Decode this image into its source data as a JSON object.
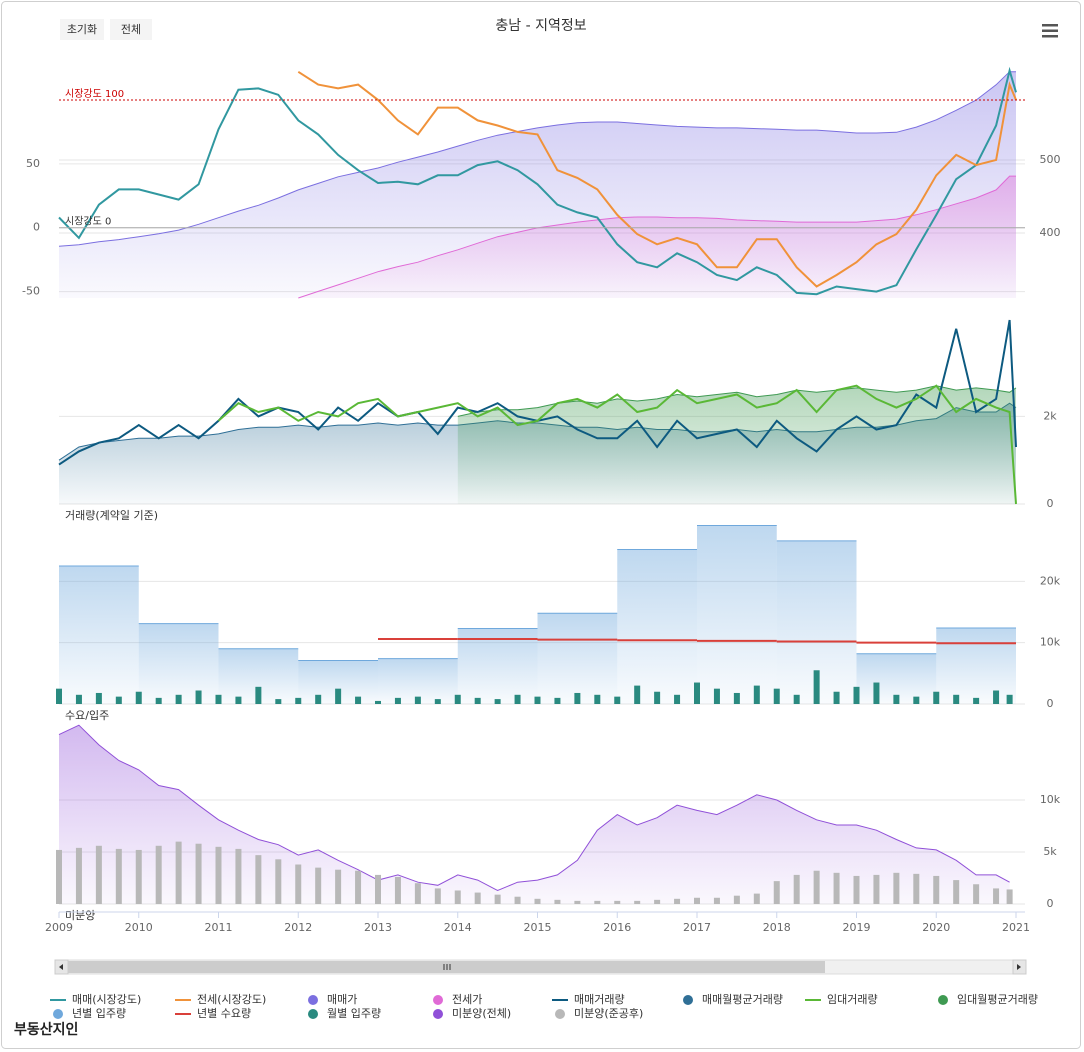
{
  "title": "충남 - 지역정보",
  "buttons": [
    "초기화",
    "전체"
  ],
  "logo": "부동산지인",
  "chart_data": [
    {
      "type": "line",
      "x": [
        2009,
        2009.25,
        2009.5,
        2009.75,
        2010,
        2010.25,
        2010.5,
        2010.75,
        2011,
        2011.25,
        2011.5,
        2011.75,
        2012,
        2012.25,
        2012.5,
        2012.75,
        2013,
        2013.25,
        2013.5,
        2013.75,
        2014,
        2014.25,
        2014.5,
        2014.75,
        2015,
        2015.25,
        2015.5,
        2015.75,
        2016,
        2016.25,
        2016.5,
        2016.75,
        2017,
        2017.25,
        2017.5,
        2017.75,
        2018,
        2018.25,
        2018.5,
        2018.75,
        2019,
        2019.25,
        2019.5,
        2019.75,
        2020,
        2020.25,
        2020.5,
        2020.75,
        2020.92,
        2021
      ],
      "xlim": [
        2009,
        2021
      ],
      "ylim": [
        -55,
        125
      ],
      "yticks": [
        -50,
        0,
        50
      ],
      "y2lim": [
        311,
        626
      ],
      "y2ticks": [
        400,
        500
      ],
      "plot_lines": [
        {
          "value": 100,
          "label": "시장강도 100",
          "color": "#cc0000",
          "dash": "dot"
        },
        {
          "value": 0,
          "label": "시장강도 0",
          "color": "#aaaaaa",
          "dash": "solid"
        }
      ],
      "series": [
        {
          "name": "매매(시장강도)",
          "type": "line",
          "color": "#3198a0",
          "values": [
            8,
            -8,
            18,
            30,
            30,
            26,
            22,
            34,
            77,
            108,
            109,
            104,
            84,
            73,
            57,
            45,
            35,
            36,
            34,
            41,
            41,
            49,
            52,
            45,
            34,
            18,
            12,
            8,
            -13,
            -27,
            -31,
            -20,
            -27,
            -37,
            -41,
            -31,
            -37,
            -51,
            -52,
            -46,
            -48,
            -50,
            -45,
            -17,
            10,
            38,
            49,
            80,
            123,
            106
          ]
        },
        {
          "name": "전세(시장강도)",
          "type": "line",
          "color": "#f0923a",
          "values": [
            null,
            null,
            null,
            null,
            null,
            null,
            null,
            null,
            null,
            null,
            null,
            null,
            122,
            112,
            109,
            112,
            100,
            84,
            73,
            94,
            94,
            84,
            80,
            75,
            73,
            45,
            39,
            30,
            10,
            -5,
            -13,
            -8,
            -13,
            -31,
            -31,
            -9,
            -9,
            -31,
            -46,
            -37,
            -27,
            -13,
            -5,
            14,
            41,
            57,
            49,
            53,
            112,
            100
          ]
        },
        {
          "name": "매매가",
          "type": "area",
          "axis": "y2",
          "color": "#7b6fe0",
          "values": [
            382,
            384,
            388,
            391,
            395,
            399,
            404,
            412,
            421,
            430,
            438,
            448,
            459,
            468,
            477,
            483,
            489,
            497,
            504,
            511,
            519,
            527,
            534,
            539,
            544,
            548,
            551,
            552,
            552,
            550,
            548,
            546,
            545,
            544,
            544,
            543,
            542,
            541,
            541,
            539,
            537,
            537,
            538,
            545,
            555,
            568,
            582,
            603,
            621,
            621
          ]
        },
        {
          "name": "전세가",
          "type": "area",
          "axis": "y2",
          "color": "#e06ad6",
          "values": [
            null,
            null,
            null,
            null,
            null,
            null,
            null,
            null,
            null,
            null,
            null,
            null,
            311,
            320,
            329,
            338,
            347,
            354,
            360,
            369,
            377,
            386,
            395,
            401,
            407,
            411,
            415,
            418,
            421,
            422,
            422,
            421,
            421,
            420,
            418,
            417,
            416,
            415,
            415,
            415,
            415,
            417,
            419,
            425,
            432,
            440,
            448,
            459,
            478,
            478
          ]
        }
      ]
    },
    {
      "type": "line",
      "label": "거래량(계약일 기준)",
      "x": [
        2009,
        2009.25,
        2009.5,
        2009.75,
        2010,
        2010.25,
        2010.5,
        2010.75,
        2011,
        2011.25,
        2011.5,
        2011.75,
        2012,
        2012.25,
        2012.5,
        2012.75,
        2013,
        2013.25,
        2013.5,
        2013.75,
        2014,
        2014.25,
        2014.5,
        2014.75,
        2015,
        2015.25,
        2015.5,
        2015.75,
        2016,
        2016.25,
        2016.5,
        2016.75,
        2017,
        2017.25,
        2017.5,
        2017.75,
        2018,
        2018.25,
        2018.5,
        2018.75,
        2019,
        2019.25,
        2019.5,
        2019.75,
        2020,
        2020.25,
        2020.5,
        2020.75,
        2020.92,
        2021
      ],
      "xlim": [
        2009,
        2021
      ],
      "ylim": [
        0,
        4200
      ],
      "yticks": [
        0,
        {
          "value": 2000,
          "label": "2k"
        }
      ],
      "series": [
        {
          "name": "매매거래량",
          "type": "line",
          "color": "#0d5a80",
          "values": [
            900,
            1200,
            1400,
            1500,
            1800,
            1500,
            1800,
            1500,
            1900,
            2400,
            2000,
            2200,
            2100,
            1700,
            2200,
            1900,
            2300,
            2000,
            2100,
            1600,
            2200,
            2100,
            2300,
            2000,
            1900,
            2000,
            1700,
            1500,
            1500,
            1900,
            1300,
            1900,
            1500,
            1600,
            1700,
            1300,
            1900,
            1500,
            1200,
            1700,
            2000,
            1700,
            1800,
            2500,
            2200,
            4000,
            2100,
            2400,
            4200,
            1300
          ]
        },
        {
          "name": "매매월평균거래량",
          "type": "area",
          "color": "#2f6f96",
          "values": [
            1000,
            1300,
            1400,
            1450,
            1500,
            1500,
            1550,
            1550,
            1600,
            1700,
            1750,
            1750,
            1800,
            1750,
            1800,
            1800,
            1850,
            1800,
            1850,
            1800,
            1800,
            1850,
            1900,
            1850,
            1850,
            1800,
            1750,
            1750,
            1700,
            1750,
            1700,
            1700,
            1650,
            1650,
            1700,
            1650,
            1700,
            1650,
            1650,
            1700,
            1750,
            1750,
            1800,
            1900,
            1950,
            2200,
            2100,
            2100,
            2300,
            2200
          ]
        },
        {
          "name": "임대거래량",
          "type": "line",
          "color": "#5ab836",
          "values": [
            null,
            null,
            null,
            null,
            null,
            null,
            null,
            null,
            1900,
            2300,
            2100,
            2200,
            1900,
            2100,
            2000,
            2300,
            2400,
            2000,
            2100,
            2200,
            2300,
            2000,
            2200,
            1800,
            1900,
            2300,
            2400,
            2200,
            2500,
            2100,
            2200,
            2600,
            2300,
            2400,
            2500,
            2200,
            2300,
            2600,
            2100,
            2600,
            2700,
            2400,
            2200,
            2400,
            2700,
            2100,
            2400,
            2200,
            2100,
            0
          ]
        },
        {
          "name": "임대월평균거래량",
          "type": "area",
          "color": "#3f9a52",
          "values": [
            null,
            null,
            null,
            null,
            null,
            null,
            null,
            null,
            null,
            null,
            null,
            null,
            null,
            null,
            null,
            null,
            null,
            null,
            null,
            null,
            2000,
            2100,
            2150,
            2150,
            2200,
            2300,
            2350,
            2300,
            2400,
            2350,
            2400,
            2500,
            2450,
            2500,
            2550,
            2450,
            2500,
            2600,
            2550,
            2600,
            2650,
            2600,
            2550,
            2600,
            2700,
            2600,
            2650,
            2600,
            2550,
            2650
          ]
        }
      ]
    },
    {
      "type": "bar",
      "label": "수요/입주",
      "x": [
        2009,
        2009.25,
        2009.5,
        2009.75,
        2010,
        2010.25,
        2010.5,
        2010.75,
        2011,
        2011.25,
        2011.5,
        2011.75,
        2012,
        2012.25,
        2012.5,
        2012.75,
        2013,
        2013.25,
        2013.5,
        2013.75,
        2014,
        2014.25,
        2014.5,
        2014.75,
        2015,
        2015.25,
        2015.5,
        2015.75,
        2016,
        2016.25,
        2016.5,
        2016.75,
        2017,
        2017.25,
        2017.5,
        2017.75,
        2018,
        2018.25,
        2018.5,
        2018.75,
        2019,
        2019.25,
        2019.5,
        2019.75,
        2020,
        2020.25,
        2020.5,
        2020.75,
        2020.92,
        2021
      ],
      "xlim": [
        2009,
        2021
      ],
      "ylim": [
        0,
        30000
      ],
      "yticks": [
        0,
        {
          "value": 10000,
          "label": "10k"
        },
        {
          "value": 20000,
          "label": "20k"
        }
      ],
      "series": [
        {
          "name": "년별 입주량",
          "type": "step",
          "color": "#6fa8dc",
          "x": [
            2009,
            2010,
            2011,
            2012,
            2013,
            2014,
            2015,
            2016,
            2017,
            2018,
            2019,
            2020
          ],
          "values": [
            22500,
            13100,
            9000,
            7100,
            7400,
            12300,
            14800,
            25200,
            29100,
            26600,
            8200,
            12400
          ]
        },
        {
          "name": "년별 수요량",
          "type": "step-line",
          "color": "#d9403a",
          "x": [
            2013,
            2014,
            2015,
            2016,
            2017,
            2018,
            2019,
            2020
          ],
          "values": [
            10600,
            10600,
            10500,
            10400,
            10300,
            10200,
            10000,
            9900
          ]
        },
        {
          "name": "월별 입주량",
          "type": "bar",
          "color": "#2a8a80",
          "values": [
            2500,
            1500,
            1800,
            1200,
            2000,
            1000,
            1500,
            2200,
            1500,
            1200,
            2800,
            800,
            1000,
            1500,
            2500,
            1200,
            500,
            1000,
            1200,
            800,
            1500,
            1000,
            800,
            1500,
            1200,
            1000,
            1800,
            1500,
            1200,
            3000,
            2000,
            1500,
            3500,
            2500,
            1800,
            3000,
            2500,
            1500,
            5500,
            2000,
            2800,
            3500,
            1500,
            1200,
            2000,
            1500,
            1000,
            2200,
            1500,
            null
          ]
        }
      ]
    },
    {
      "type": "area",
      "label": "미분양",
      "x": [
        2009,
        2009.25,
        2009.5,
        2009.75,
        2010,
        2010.25,
        2010.5,
        2010.75,
        2011,
        2011.25,
        2011.5,
        2011.75,
        2012,
        2012.25,
        2012.5,
        2012.75,
        2013,
        2013.25,
        2013.5,
        2013.75,
        2014,
        2014.25,
        2014.5,
        2014.75,
        2015,
        2015.25,
        2015.5,
        2015.75,
        2016,
        2016.25,
        2016.5,
        2016.75,
        2017,
        2017.25,
        2017.5,
        2017.75,
        2018,
        2018.25,
        2018.5,
        2018.75,
        2019,
        2019.25,
        2019.5,
        2019.75,
        2020,
        2020.25,
        2020.5,
        2020.75,
        2020.92,
        2021
      ],
      "xlim": [
        2009,
        2021
      ],
      "xticks": [
        2009,
        2010,
        2011,
        2012,
        2013,
        2014,
        2015,
        2016,
        2017,
        2018,
        2019,
        2020,
        2021
      ],
      "ylim": [
        0,
        17700
      ],
      "yticks": [
        0,
        {
          "value": 5000,
          "label": "5k"
        },
        {
          "value": 10000,
          "label": "10k"
        }
      ],
      "series": [
        {
          "name": "미분양(전체)",
          "type": "area",
          "color": "#9050d8",
          "values": [
            16300,
            17200,
            15300,
            13800,
            12900,
            11400,
            11000,
            9500,
            8100,
            7100,
            6200,
            5700,
            4700,
            5200,
            4200,
            3300,
            2300,
            2800,
            2100,
            1800,
            2800,
            2300,
            1300,
            2100,
            2300,
            2800,
            4200,
            7100,
            8600,
            7600,
            8300,
            9500,
            9000,
            8600,
            9500,
            10500,
            10000,
            9000,
            8100,
            7600,
            7600,
            7100,
            6200,
            5400,
            5200,
            4200,
            2800,
            2800,
            2100,
            null
          ]
        },
        {
          "name": "미분양(준공후)",
          "type": "bar",
          "color": "#b8b8b8",
          "values": [
            5200,
            5400,
            5600,
            5300,
            5200,
            5600,
            6000,
            5800,
            5500,
            5300,
            4700,
            4300,
            3800,
            3500,
            3300,
            3200,
            2800,
            2600,
            2000,
            1500,
            1300,
            1100,
            900,
            700,
            500,
            400,
            300,
            300,
            300,
            300,
            400,
            500,
            600,
            600,
            800,
            1000,
            2200,
            2800,
            3200,
            3000,
            2700,
            2800,
            3000,
            2900,
            2700,
            2300,
            1900,
            1500,
            1400,
            null
          ]
        }
      ]
    }
  ]
}
